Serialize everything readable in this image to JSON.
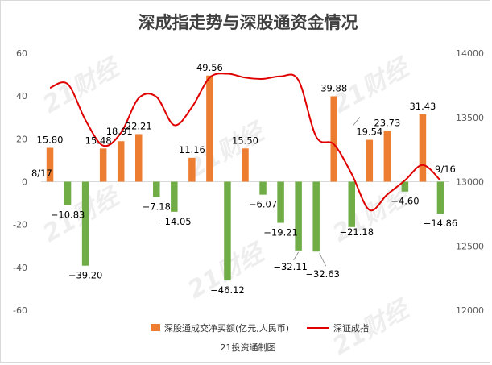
{
  "chart_data": {
    "type": "bar+line",
    "title": "深成指走势与深股通资金情况",
    "credit": "21投资通制图",
    "watermark": "21财经",
    "left_axis": {
      "ylim": [
        -60,
        60
      ],
      "ticks": [
        "60",
        "40",
        "20",
        "0",
        "-20",
        "-40",
        "-60"
      ],
      "tick_values": [
        60,
        40,
        20,
        0,
        -20,
        -40,
        -60
      ]
    },
    "right_axis": {
      "ylim": [
        12000,
        14000
      ],
      "ticks": [
        "14000",
        "13500",
        "13000",
        "12500",
        "12000"
      ],
      "tick_values": [
        14000,
        13500,
        13000,
        12500,
        12000
      ]
    },
    "bar_series": {
      "name": "深股通成交净买额(亿元,人民币)",
      "values": [
        15.8,
        -10.83,
        -39.2,
        15.48,
        18.91,
        22.21,
        -7.18,
        -14.05,
        11.16,
        49.56,
        -46.12,
        15.5,
        -6.07,
        -19.21,
        -32.11,
        -32.63,
        39.88,
        -21.18,
        19.54,
        23.73,
        -4.6,
        31.43,
        -14.86
      ],
      "labels": [
        "15.80",
        "−10.83",
        "−39.20",
        "15.48",
        "18.91",
        "22.21",
        "−7.18",
        "−14.05",
        "11.16",
        "49.56",
        "−46.12",
        "15.50",
        "−6.07",
        "−19.21",
        "−32.11",
        "−32.63",
        "39.88",
        "−21.18",
        "19.54",
        "23.73",
        "−4.60",
        "31.43",
        "−14.86"
      ],
      "positive_color": "#ed7d31",
      "negative_color": "#70ad47"
    },
    "line_series": {
      "name": "深证成指",
      "color": "#e00000",
      "values": [
        13730,
        13760,
        13480,
        13280,
        13380,
        13650,
        13660,
        13440,
        13580,
        13810,
        13840,
        13810,
        13800,
        13820,
        13790,
        13350,
        13290,
        13060,
        12780,
        12900,
        13010,
        13130,
        13010
      ]
    },
    "annotations": {
      "start": "8/17",
      "end": "9/16"
    },
    "legend": [
      "深股通成交净买额(亿元,人民币)",
      "深证成指"
    ]
  }
}
